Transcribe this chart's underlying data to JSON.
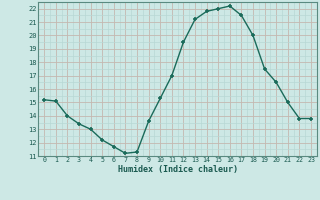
{
  "x": [
    0,
    1,
    2,
    3,
    4,
    5,
    6,
    7,
    8,
    9,
    10,
    11,
    12,
    13,
    14,
    15,
    16,
    17,
    18,
    19,
    20,
    21,
    22,
    23
  ],
  "y": [
    15.2,
    15.1,
    14.0,
    13.4,
    13.0,
    12.2,
    11.7,
    11.2,
    11.3,
    13.6,
    15.3,
    17.0,
    19.5,
    21.2,
    21.8,
    22.0,
    22.2,
    21.5,
    20.0,
    17.5,
    16.5,
    15.0,
    13.8,
    13.8
  ],
  "line_color": "#1a6b5a",
  "marker_color": "#1a6b5a",
  "bg_color": "#cde8e5",
  "minor_grid_color": "#b8d8d4",
  "major_grid_color": "#c4b8b0",
  "xlabel": "Humidex (Indice chaleur)",
  "xlim": [
    -0.5,
    23.5
  ],
  "ylim": [
    11,
    22.5
  ],
  "yticks": [
    11,
    12,
    13,
    14,
    15,
    16,
    17,
    18,
    19,
    20,
    21,
    22
  ],
  "xticks": [
    0,
    1,
    2,
    3,
    4,
    5,
    6,
    7,
    8,
    9,
    10,
    11,
    12,
    13,
    14,
    15,
    16,
    17,
    18,
    19,
    20,
    21,
    22,
    23
  ]
}
